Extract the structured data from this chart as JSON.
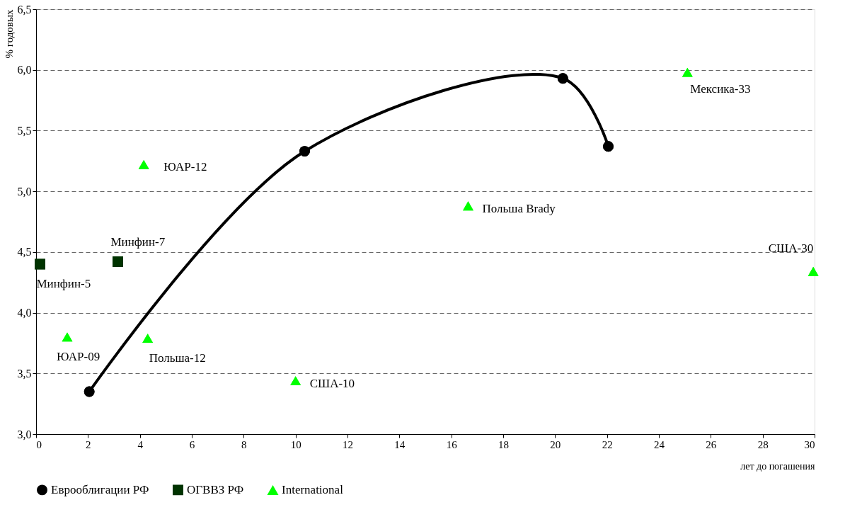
{
  "chart_data": {
    "type": "scatter",
    "ylabel": "% годовых",
    "xlabel": "лет до погашения",
    "xlim": [
      0,
      30
    ],
    "xticks": [
      0,
      2,
      4,
      6,
      8,
      10,
      12,
      14,
      16,
      18,
      20,
      22,
      24,
      26,
      28,
      30
    ],
    "ylim": [
      3.0,
      6.5
    ],
    "yticks": [
      {
        "value": 3.0,
        "label": "3,0"
      },
      {
        "value": 3.5,
        "label": "3,5"
      },
      {
        "value": 4.0,
        "label": "4,0"
      },
      {
        "value": 4.5,
        "label": "4,5"
      },
      {
        "value": 5.0,
        "label": "5,0"
      },
      {
        "value": 5.5,
        "label": "5,5"
      },
      {
        "value": 6.0,
        "label": "6,0"
      },
      {
        "value": 6.5,
        "label": "6,5"
      }
    ],
    "grid": "y",
    "legend": "bottom",
    "series": [
      {
        "name": "Еврооблигации РФ",
        "type": "line",
        "marker": "circle",
        "color": "#000000",
        "x": [
          2.05,
          10.35,
          20.3,
          22.05
        ],
        "values": [
          3.35,
          5.33,
          5.93,
          5.37
        ]
      },
      {
        "name": "ОГВВЗ РФ",
        "type": "scatter",
        "marker": "square",
        "color": "#003300",
        "x": [
          0.15,
          3.15
        ],
        "values": [
          4.4,
          4.42
        ]
      },
      {
        "name": "International",
        "type": "scatter",
        "marker": "triangle",
        "color": "#00ff00",
        "x": [
          1.2,
          4.15,
          4.3,
          10.0,
          16.65,
          25.1,
          29.95
        ],
        "values": [
          3.8,
          5.22,
          3.79,
          3.44,
          4.88,
          5.98,
          4.34
        ]
      }
    ],
    "annotations": [
      {
        "text": "Минфин-5",
        "x": 0.15,
        "y": 4.4
      },
      {
        "text": "Минфин-7",
        "x": 3.15,
        "y": 4.42
      },
      {
        "text": "ЮАР-09",
        "x": 1.2,
        "y": 3.8
      },
      {
        "text": "ЮАР-12",
        "x": 4.15,
        "y": 5.22
      },
      {
        "text": "Польша-12",
        "x": 4.3,
        "y": 3.79
      },
      {
        "text": "США-10",
        "x": 10.0,
        "y": 3.44
      },
      {
        "text": "Польша Brady",
        "x": 16.65,
        "y": 4.88
      },
      {
        "text": "Мексика-33",
        "x": 25.1,
        "y": 5.98
      },
      {
        "text": "США-30",
        "x": 29.95,
        "y": 4.34
      }
    ]
  }
}
